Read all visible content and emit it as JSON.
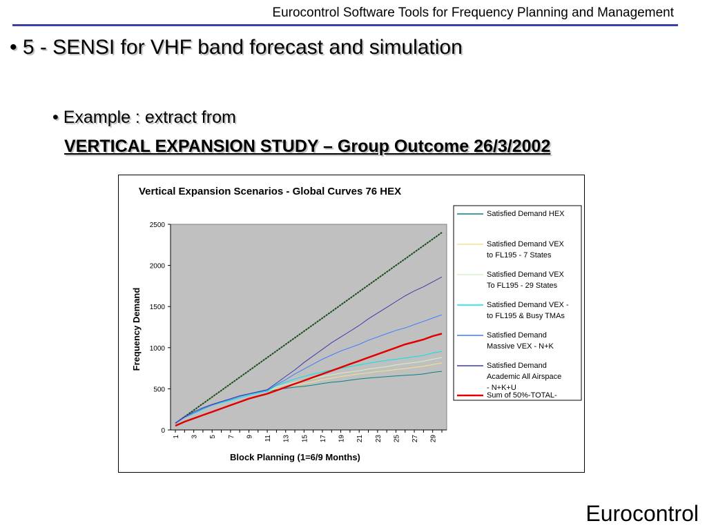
{
  "header": {
    "title": "Eurocontrol Software Tools for Frequency Planning and Management"
  },
  "slide": {
    "bullet1": "• 5 - SENSI for VHF band forecast and simulation",
    "bullet2_mark": "•",
    "bullet2": "Example : extract from",
    "study_title": "VERTICAL EXPANSION STUDY – Group Outcome 26/3/2002"
  },
  "footer": {
    "brand": "Eurocontrol"
  },
  "colors": {
    "plot_bg": "#c0c0c0",
    "header_rule": "#3b3fa8"
  },
  "chart_data": {
    "type": "line",
    "title": "Vertical Expansion Scenarios - Global Curves 76 HEX",
    "xlabel": "Block Planning (1=6/9 Months)",
    "ylabel": "Frequency Demand",
    "ylim": [
      0,
      2500
    ],
    "yticks": [
      "0",
      "500",
      "1000",
      "1500",
      "2000",
      "2500"
    ],
    "categories": [
      1,
      2,
      3,
      4,
      5,
      6,
      7,
      8,
      9,
      10,
      11,
      12,
      13,
      14,
      15,
      16,
      17,
      18,
      19,
      20,
      21,
      22,
      23,
      24,
      25,
      26,
      27,
      28,
      29,
      30
    ],
    "xtick_labels": [
      "1",
      "3",
      "5",
      "7",
      "9",
      "11",
      "13",
      "15",
      "17",
      "19",
      "21",
      "23",
      "25",
      "27",
      "29"
    ],
    "grid": false,
    "legend": "right",
    "series": [
      {
        "name": "Satisfied Demand HEX",
        "color": "#008080",
        "width": 1,
        "values": [
          80,
          150,
          200,
          250,
          300,
          330,
          360,
          390,
          420,
          450,
          470,
          490,
          505,
          520,
          530,
          545,
          565,
          580,
          590,
          605,
          620,
          630,
          640,
          648,
          656,
          664,
          670,
          680,
          700,
          712
        ]
      },
      {
        "name": "Satisfied Demand VEX to FL195 - 7 States",
        "color": "#f4e48c",
        "width": 1,
        "values": [
          80,
          150,
          200,
          250,
          300,
          330,
          360,
          390,
          420,
          450,
          470,
          500,
          520,
          545,
          565,
          585,
          610,
          630,
          650,
          665,
          680,
          695,
          710,
          720,
          735,
          745,
          760,
          775,
          795,
          815
        ]
      },
      {
        "name": "Satisfied Demand VEX To FL195 - 29 States",
        "color": "#d8f0c8",
        "width": 1,
        "values": [
          80,
          150,
          200,
          250,
          300,
          330,
          360,
          390,
          420,
          450,
          470,
          520,
          550,
          580,
          605,
          625,
          650,
          670,
          690,
          705,
          720,
          740,
          755,
          770,
          790,
          805,
          820,
          835,
          860,
          880
        ]
      },
      {
        "name": "Satisfied Demand VEX - to FL195 & Busy TMAs",
        "color": "#00e5e5",
        "width": 1,
        "values": [
          80,
          150,
          200,
          250,
          300,
          330,
          360,
          390,
          420,
          450,
          470,
          540,
          580,
          620,
          650,
          680,
          705,
          730,
          750,
          770,
          790,
          810,
          830,
          845,
          860,
          875,
          890,
          905,
          935,
          955
        ]
      },
      {
        "name": "Satisfied Demand Massive VEX - N+K",
        "color": "#3c7cff",
        "width": 1,
        "values": [
          80,
          150,
          205,
          260,
          300,
          340,
          370,
          405,
          435,
          460,
          480,
          550,
          610,
          680,
          740,
          800,
          860,
          910,
          960,
          1000,
          1040,
          1090,
          1130,
          1170,
          1210,
          1240,
          1280,
          1320,
          1360,
          1400
        ]
      },
      {
        "name": "Satisfied Demand Academic All Airspace - N+K+U",
        "color": "#3a3aa8",
        "width": 1,
        "values": [
          85,
          160,
          220,
          270,
          310,
          345,
          380,
          415,
          440,
          465,
          490,
          570,
          650,
          730,
          820,
          900,
          980,
          1060,
          1130,
          1200,
          1270,
          1350,
          1420,
          1490,
          1560,
          1630,
          1690,
          1740,
          1800,
          1860
        ]
      },
      {
        "name": "Sum of 50%-TOTAL-",
        "color": "#e00000",
        "width": 2.5,
        "values": [
          50,
          100,
          140,
          180,
          220,
          260,
          300,
          340,
          380,
          410,
          440,
          480,
          520,
          560,
          600,
          640,
          680,
          720,
          760,
          800,
          840,
          880,
          920,
          960,
          1000,
          1040,
          1070,
          1100,
          1140,
          1170
        ]
      }
    ],
    "extra_series": {
      "color": "#1a4a1a",
      "width": 2,
      "values": [
        80,
        160,
        240,
        320,
        400,
        480,
        560,
        640,
        720,
        800,
        880,
        960,
        1040,
        1120,
        1200,
        1280,
        1360,
        1440,
        1520,
        1600,
        1680,
        1760,
        1840,
        1920,
        2000,
        2080,
        2160,
        2240,
        2320,
        2400
      ]
    }
  }
}
